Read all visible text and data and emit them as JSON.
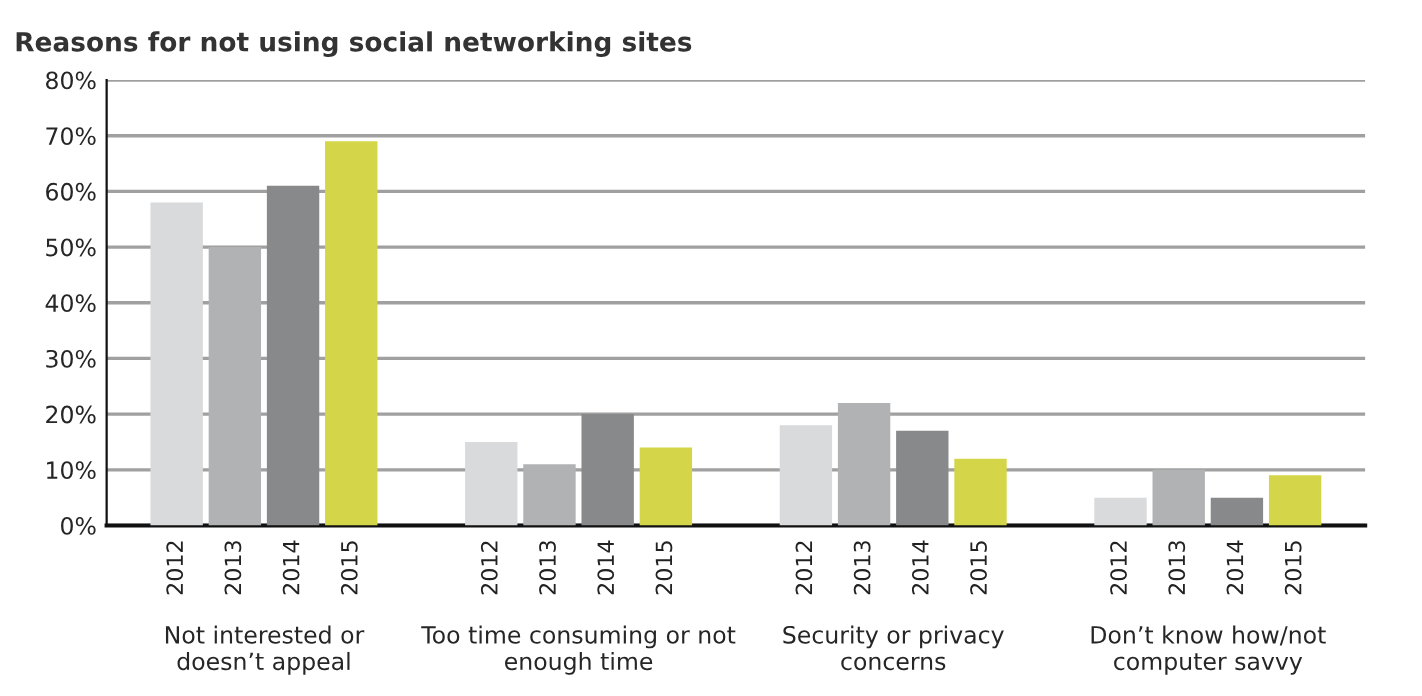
{
  "chart_data": {
    "type": "bar",
    "title": "Reasons for not using social networking sites",
    "categories": [
      "Not interested or\ndoesn’t appeal",
      "Too time consuming or not\nenough time",
      "Security or privacy\nconcerns",
      "Don’t know how/not\ncomputer savvy"
    ],
    "series": [
      {
        "name": "2012",
        "color": "#d9dadb",
        "values": [
          58,
          15,
          18,
          5
        ]
      },
      {
        "name": "2013",
        "color": "#b1b2b3",
        "values": [
          50,
          11,
          22,
          10
        ]
      },
      {
        "name": "2014",
        "color": "#88898a",
        "values": [
          61,
          20,
          17,
          5
        ]
      },
      {
        "name": "2015",
        "color": "#d4d548",
        "values": [
          69,
          14,
          12,
          9
        ]
      }
    ],
    "ylim": [
      0,
      80
    ],
    "yticks": [
      {
        "value": 0,
        "label": "0%"
      },
      {
        "value": 10,
        "label": "10%"
      },
      {
        "value": 20,
        "label": "20%"
      },
      {
        "value": 30,
        "label": "30%"
      },
      {
        "value": 40,
        "label": "40%"
      },
      {
        "value": 50,
        "label": "50%"
      },
      {
        "value": 60,
        "label": "60%"
      },
      {
        "value": 70,
        "label": "70%"
      },
      {
        "value": 80,
        "label": "80%"
      }
    ],
    "grid": "y",
    "legend": false
  }
}
